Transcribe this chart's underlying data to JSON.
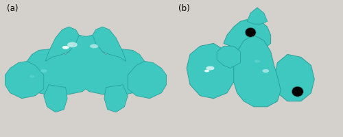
{
  "figure_bg": "#d4d0cb",
  "black": "#000000",
  "teal": "#3ec8c0",
  "teal_mid": "#2aa09a",
  "teal_light": "#7ae0da",
  "white_spec": "#ffffff",
  "label_color": "#000000",
  "label_fontsize": 8.5,
  "label_a": "(a)",
  "label_b": "(b)",
  "fig_width": 5.0,
  "fig_height": 2.01
}
